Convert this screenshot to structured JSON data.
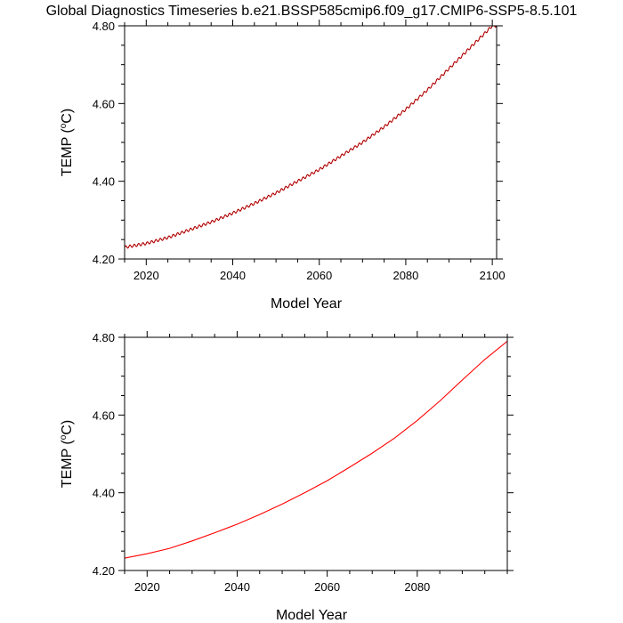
{
  "title": "Global Diagnostics Timeseries b.e21.BSSP585cmip6.f09_g17.CMIP6-SSP5-8.5.101",
  "colors": {
    "background": "#ffffff",
    "series_red": "#ff0000",
    "series_black": "#000000"
  },
  "chart_data": [
    {
      "type": "line",
      "xlabel": "Model Year",
      "ylabel": "TEMP (oC)",
      "ylabel_parts": {
        "name": "TEMP (",
        "sup": "o",
        "unit": "C)"
      },
      "xlim": [
        2015,
        2101
      ],
      "ylim": [
        4.2,
        4.8
      ],
      "x_major_ticks": [
        2020,
        2040,
        2060,
        2080,
        2100
      ],
      "x_tick_labels": [
        "2020",
        "2040",
        "2060",
        "2080",
        "2100"
      ],
      "y_major_ticks": [
        4.2,
        4.4,
        4.6,
        4.8
      ],
      "y_tick_labels": [
        "4.20",
        "4.40",
        "4.60",
        "4.80"
      ],
      "seasonal_cycle": true,
      "series": [
        {
          "color": "#ff0000",
          "x": [
            2015,
            2020,
            2025,
            2030,
            2035,
            2040,
            2045,
            2050,
            2055,
            2060,
            2065,
            2070,
            2075,
            2080,
            2085,
            2090,
            2095,
            2100
          ],
          "values": [
            4.23,
            4.24,
            4.255,
            4.275,
            4.295,
            4.318,
            4.343,
            4.37,
            4.4,
            4.43,
            4.465,
            4.5,
            4.54,
            4.585,
            4.635,
            4.69,
            4.745,
            4.8
          ]
        },
        {
          "color": "#000000",
          "x": [
            2015,
            2020,
            2025,
            2030,
            2035,
            2040,
            2045,
            2050,
            2055,
            2060,
            2065,
            2070,
            2075,
            2080,
            2085,
            2090,
            2095,
            2100
          ],
          "values": [
            4.23,
            4.24,
            4.255,
            4.275,
            4.295,
            4.318,
            4.343,
            4.37,
            4.4,
            4.43,
            4.465,
            4.5,
            4.54,
            4.585,
            4.635,
            4.69,
            4.745,
            4.8
          ]
        }
      ]
    },
    {
      "type": "line",
      "xlabel": "Model Year",
      "ylabel": "TEMP (oC)",
      "ylabel_parts": {
        "name": "TEMP (",
        "sup": "o",
        "unit": "C)"
      },
      "xlim": [
        2015,
        2100
      ],
      "ylim": [
        4.2,
        4.8
      ],
      "x_major_ticks": [
        2020,
        2040,
        2060,
        2080
      ],
      "x_tick_labels": [
        "2020",
        "2040",
        "2060",
        "2080"
      ],
      "y_major_ticks": [
        4.2,
        4.4,
        4.6,
        4.8
      ],
      "y_tick_labels": [
        "4.20",
        "4.40",
        "4.60",
        "4.80"
      ],
      "seasonal_cycle": false,
      "series": [
        {
          "color": "#ff0000",
          "x": [
            2015,
            2020,
            2025,
            2030,
            2035,
            2040,
            2045,
            2050,
            2055,
            2060,
            2065,
            2070,
            2075,
            2080,
            2085,
            2090,
            2095,
            2100
          ],
          "values": [
            4.232,
            4.243,
            4.257,
            4.276,
            4.297,
            4.319,
            4.344,
            4.371,
            4.4,
            4.431,
            4.466,
            4.502,
            4.541,
            4.586,
            4.636,
            4.69,
            4.743,
            4.79
          ]
        }
      ]
    }
  ]
}
